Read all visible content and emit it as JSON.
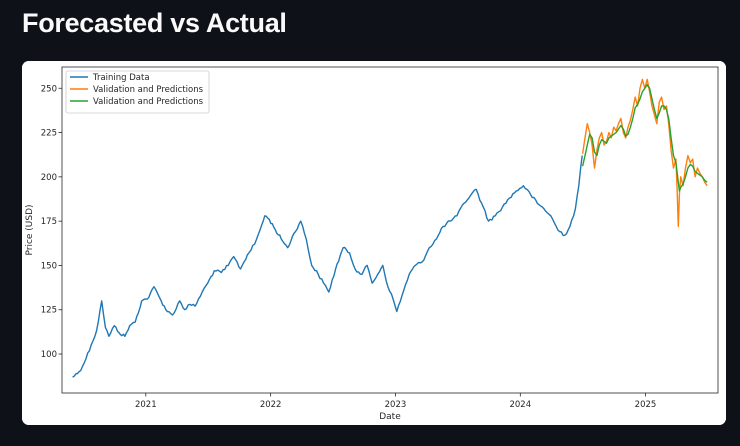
{
  "page": {
    "title": "Forecasted vs Actual"
  },
  "chart_data": {
    "type": "line",
    "title": "",
    "xlabel": "Date",
    "ylabel": "Price (USD)",
    "xlim": [
      "2020-05-01",
      "2025-08-01"
    ],
    "ylim": [
      78,
      262
    ],
    "grid": false,
    "legend_position": "top-left",
    "x_ticks": [
      {
        "date": "2021-01-01",
        "label": "2021"
      },
      {
        "date": "2022-01-01",
        "label": "2022"
      },
      {
        "date": "2023-01-01",
        "label": "2023"
      },
      {
        "date": "2024-01-01",
        "label": "2024"
      },
      {
        "date": "2025-01-01",
        "label": "2025"
      }
    ],
    "y_ticks": [
      100,
      125,
      150,
      175,
      200,
      225,
      250
    ],
    "series": [
      {
        "name": "Training Data",
        "color": "#1f77b4",
        "x": [
          "2020-06-01",
          "2020-06-20",
          "2020-07-05",
          "2020-07-25",
          "2020-08-10",
          "2020-08-25",
          "2020-09-05",
          "2020-09-15",
          "2020-10-01",
          "2020-10-15",
          "2020-11-01",
          "2020-11-15",
          "2020-12-01",
          "2020-12-20",
          "2021-01-10",
          "2021-01-25",
          "2021-02-15",
          "2021-03-05",
          "2021-03-20",
          "2021-04-10",
          "2021-04-25",
          "2021-05-10",
          "2021-05-25",
          "2021-06-15",
          "2021-07-01",
          "2021-07-20",
          "2021-08-10",
          "2021-08-30",
          "2021-09-15",
          "2021-10-05",
          "2021-10-25",
          "2021-11-15",
          "2021-12-01",
          "2021-12-15",
          "2021-12-28",
          "2022-01-15",
          "2022-02-01",
          "2022-02-20",
          "2022-03-10",
          "2022-03-30",
          "2022-04-15",
          "2022-05-01",
          "2022-05-20",
          "2022-06-05",
          "2022-06-20",
          "2022-07-10",
          "2022-08-01",
          "2022-08-20",
          "2022-09-05",
          "2022-09-25",
          "2022-10-10",
          "2022-10-25",
          "2022-11-10",
          "2022-11-25",
          "2022-12-10",
          "2022-12-25",
          "2023-01-05",
          "2023-01-20",
          "2023-02-10",
          "2023-02-28",
          "2023-03-20",
          "2023-04-10",
          "2023-05-01",
          "2023-05-20",
          "2023-06-10",
          "2023-06-30",
          "2023-07-20",
          "2023-08-10",
          "2023-08-25",
          "2023-09-10",
          "2023-09-30",
          "2023-10-20",
          "2023-11-10",
          "2023-11-30",
          "2023-12-20",
          "2024-01-10",
          "2024-01-31",
          "2024-02-20",
          "2024-03-10",
          "2024-03-30",
          "2024-04-20",
          "2024-05-10",
          "2024-05-25",
          "2024-06-10",
          "2024-06-20",
          "2024-06-30"
        ],
        "y": [
          87,
          90,
          95,
          105,
          113,
          130,
          115,
          110,
          116,
          112,
          110,
          116,
          118,
          130,
          132,
          138,
          130,
          124,
          122,
          130,
          125,
          128,
          127,
          135,
          140,
          147,
          146,
          150,
          155,
          148,
          156,
          162,
          170,
          178,
          176,
          170,
          165,
          160,
          168,
          175,
          165,
          150,
          145,
          140,
          135,
          148,
          160,
          157,
          148,
          145,
          150,
          140,
          145,
          150,
          138,
          131,
          124,
          133,
          145,
          150,
          152,
          160,
          165,
          172,
          175,
          178,
          185,
          190,
          193,
          185,
          175,
          178,
          183,
          188,
          192,
          195,
          190,
          185,
          182,
          178,
          170,
          167,
          172,
          182,
          195,
          212
        ]
      },
      {
        "name": "Validation and Predictions",
        "color": "#ff7f0e",
        "x": [
          "2024-07-01",
          "2024-07-08",
          "2024-07-15",
          "2024-07-22",
          "2024-07-29",
          "2024-08-05",
          "2024-08-12",
          "2024-08-19",
          "2024-08-26",
          "2024-09-02",
          "2024-09-09",
          "2024-09-16",
          "2024-09-23",
          "2024-09-30",
          "2024-10-07",
          "2024-10-14",
          "2024-10-21",
          "2024-10-28",
          "2024-11-04",
          "2024-11-11",
          "2024-11-18",
          "2024-11-25",
          "2024-12-02",
          "2024-12-09",
          "2024-12-16",
          "2024-12-23",
          "2024-12-30",
          "2025-01-06",
          "2025-01-13",
          "2025-01-20",
          "2025-01-27",
          "2025-02-03",
          "2025-02-10",
          "2025-02-17",
          "2025-02-24",
          "2025-03-03",
          "2025-03-10",
          "2025-03-17",
          "2025-03-24",
          "2025-03-31",
          "2025-04-03",
          "2025-04-07",
          "2025-04-10",
          "2025-04-14",
          "2025-04-21",
          "2025-04-28",
          "2025-05-05",
          "2025-05-12",
          "2025-05-19",
          "2025-05-26",
          "2025-06-02",
          "2025-06-09",
          "2025-06-16",
          "2025-06-23",
          "2025-06-30"
        ],
        "y": [
          213,
          222,
          230,
          225,
          218,
          205,
          215,
          222,
          225,
          218,
          220,
          225,
          222,
          228,
          226,
          230,
          233,
          225,
          222,
          228,
          232,
          238,
          245,
          240,
          250,
          255,
          250,
          255,
          248,
          240,
          235,
          230,
          242,
          245,
          238,
          240,
          230,
          215,
          205,
          210,
          195,
          172,
          190,
          200,
          195,
          205,
          212,
          208,
          210,
          200,
          205,
          202,
          200,
          197,
          195
        ]
      },
      {
        "name": "Validation and Predictions",
        "color": "#2ca02c",
        "x": [
          "2024-07-01",
          "2024-07-08",
          "2024-07-15",
          "2024-07-22",
          "2024-07-29",
          "2024-08-05",
          "2024-08-12",
          "2024-08-19",
          "2024-08-26",
          "2024-09-02",
          "2024-09-09",
          "2024-09-16",
          "2024-09-23",
          "2024-09-30",
          "2024-10-07",
          "2024-10-14",
          "2024-10-21",
          "2024-10-28",
          "2024-11-04",
          "2024-11-11",
          "2024-11-18",
          "2024-11-25",
          "2024-12-02",
          "2024-12-09",
          "2024-12-16",
          "2024-12-23",
          "2024-12-30",
          "2025-01-06",
          "2025-01-13",
          "2025-01-20",
          "2025-01-27",
          "2025-02-03",
          "2025-02-10",
          "2025-02-17",
          "2025-02-24",
          "2025-03-03",
          "2025-03-10",
          "2025-03-17",
          "2025-03-24",
          "2025-03-31",
          "2025-04-03",
          "2025-04-07",
          "2025-04-10",
          "2025-04-14",
          "2025-04-21",
          "2025-04-28",
          "2025-05-05",
          "2025-05-12",
          "2025-05-19",
          "2025-05-26",
          "2025-06-02",
          "2025-06-09",
          "2025-06-16",
          "2025-06-23",
          "2025-06-30"
        ],
        "y": [
          206,
          212,
          218,
          224,
          222,
          214,
          212,
          218,
          221,
          220,
          219,
          222,
          223,
          224,
          225,
          227,
          229,
          227,
          223,
          224,
          228,
          233,
          239,
          241,
          244,
          248,
          250,
          252,
          250,
          244,
          238,
          233,
          236,
          240,
          240,
          238,
          233,
          222,
          212,
          208,
          203,
          197,
          192,
          194,
          196,
          200,
          205,
          207,
          206,
          203,
          202,
          201,
          200,
          198,
          197
        ]
      }
    ]
  }
}
